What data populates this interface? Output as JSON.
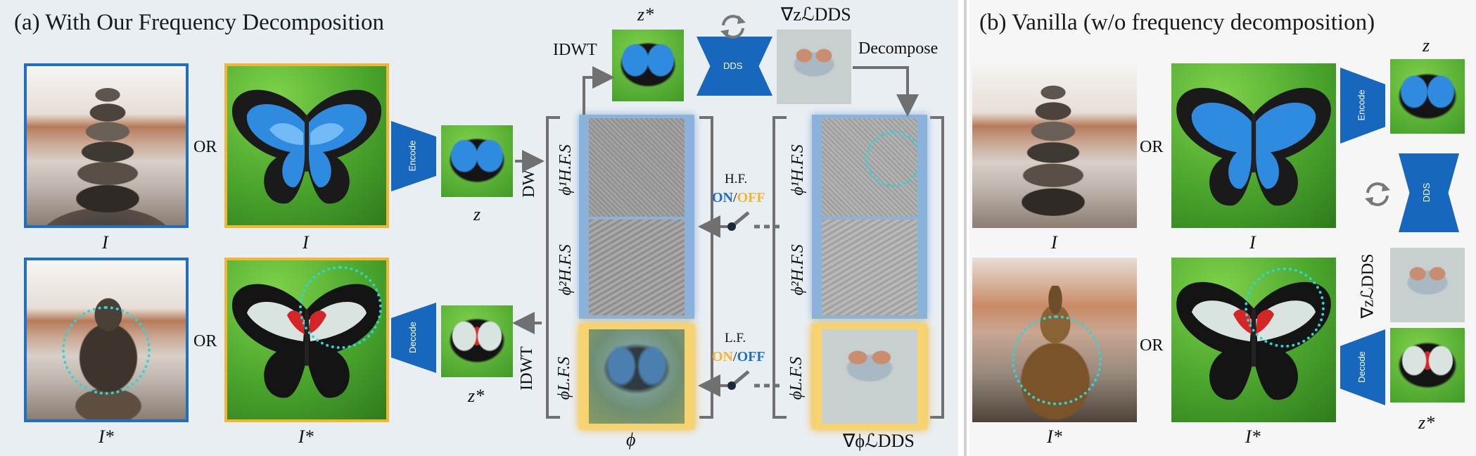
{
  "panel_a": {
    "title": "(a) With Our Frequency Decomposition",
    "labels": {
      "input_image": "I",
      "input_butterfly": "I",
      "output_image": "I*",
      "output_butterfly": "I*",
      "or_top": "OR",
      "or_bottom": "OR",
      "latent_z": "z",
      "latent_z_star_bottom": "z*",
      "latent_z_star_top": "z*",
      "phi": "ϕ",
      "grad_phi": "∇ϕℒDDS",
      "grad_z": "∇zℒDDS"
    },
    "blocks": {
      "encode": "Encode",
      "decode": "Decode",
      "dds": "DDS"
    },
    "ops": {
      "idwt_top": "IDWT",
      "dwt": "DWT",
      "idwt_bottom": "IDWT",
      "decompose": "Decompose"
    },
    "freq_labels": {
      "hf1": "ϕ¹H.F.S",
      "hf2": "ϕ²H.F.S",
      "lf": "ϕL.F.S"
    },
    "switches": {
      "hf_label": "H.F.",
      "lf_label": "L.F.",
      "on": "ON",
      "slash": "/",
      "off": "OFF"
    }
  },
  "panel_b": {
    "title": "(b) Vanilla (w/o frequency decomposition)",
    "labels": {
      "input_image": "I",
      "input_butterfly": "I",
      "output_image": "I*",
      "output_butterfly": "I*",
      "or_top": "OR",
      "or_bottom": "OR",
      "latent_z": "z",
      "latent_z_star": "z*",
      "grad_z": "∇zℒDDS"
    },
    "blocks": {
      "encode": "Encode",
      "decode": "Decode",
      "dds": "DDS"
    }
  },
  "colors": {
    "panel_a_bg": "#e9eef3",
    "panel_b_bg": "#f6f6f6",
    "block_blue": "#1767bf",
    "frame_blue": "#1f6fc2",
    "frame_gold": "#f2b632",
    "highlight_cyan": "#2ad7d7",
    "on_color": "#1f6fc2",
    "off_color": "#f2b632",
    "arrow_gray": "#707070"
  }
}
